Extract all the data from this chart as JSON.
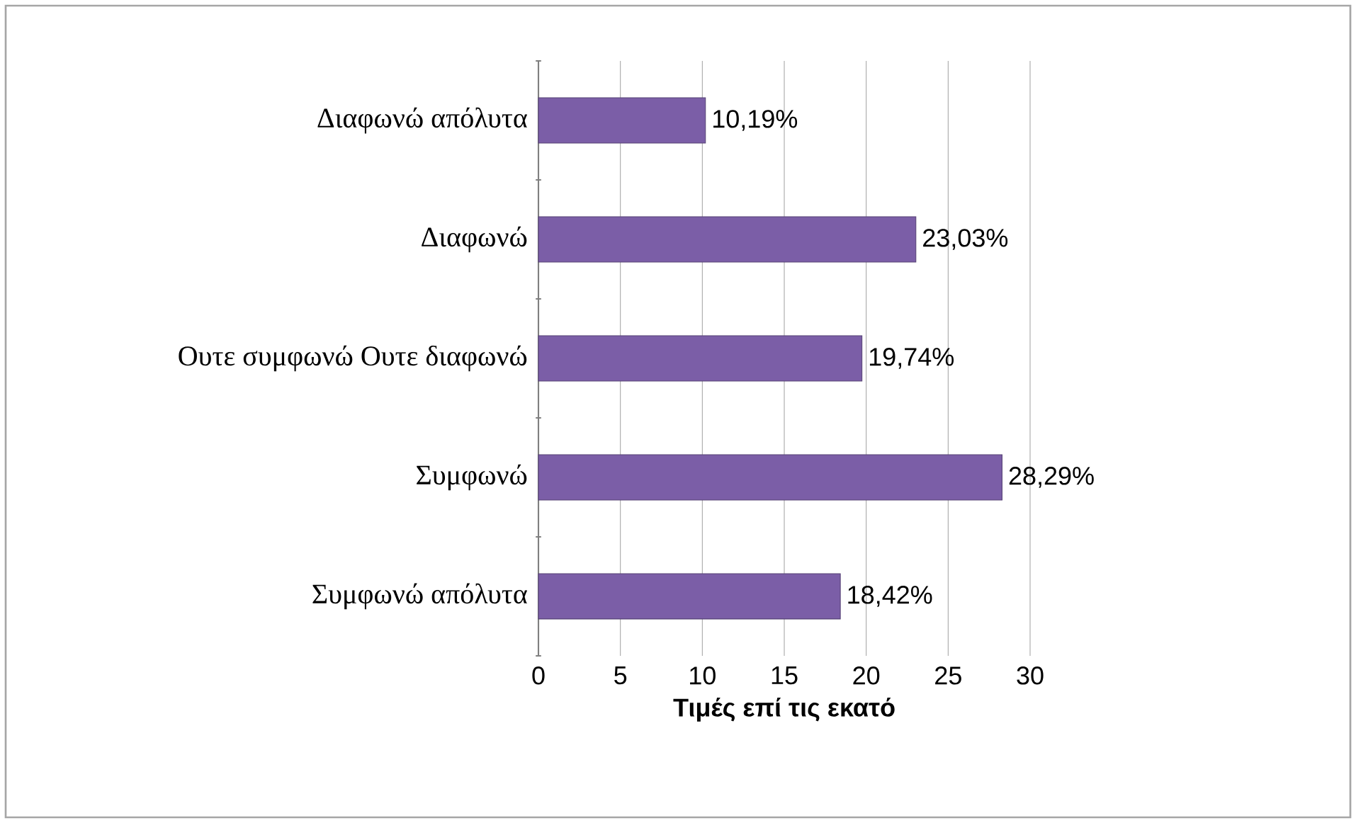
{
  "chart_data": {
    "type": "bar",
    "orientation": "horizontal",
    "xlabel": "Τιμές επί τις εκατό",
    "categories": [
      "Διαφωνώ απόλυτα",
      "Διαφωνώ",
      "Ουτε συμφωνώ Ουτε διαφωνώ",
      "Συμφωνώ",
      "Συμφωνώ απόλυτα"
    ],
    "values": [
      10.19,
      23.03,
      19.74,
      28.29,
      18.42
    ],
    "value_labels": [
      "10,19%",
      "23,03%",
      "19,74%",
      "28,29%",
      "18,42%"
    ],
    "color": "#7b5ea7",
    "xlim": [
      0,
      30
    ],
    "xticks": [
      0,
      5,
      10,
      15,
      20,
      25,
      30
    ],
    "grid": "x"
  }
}
